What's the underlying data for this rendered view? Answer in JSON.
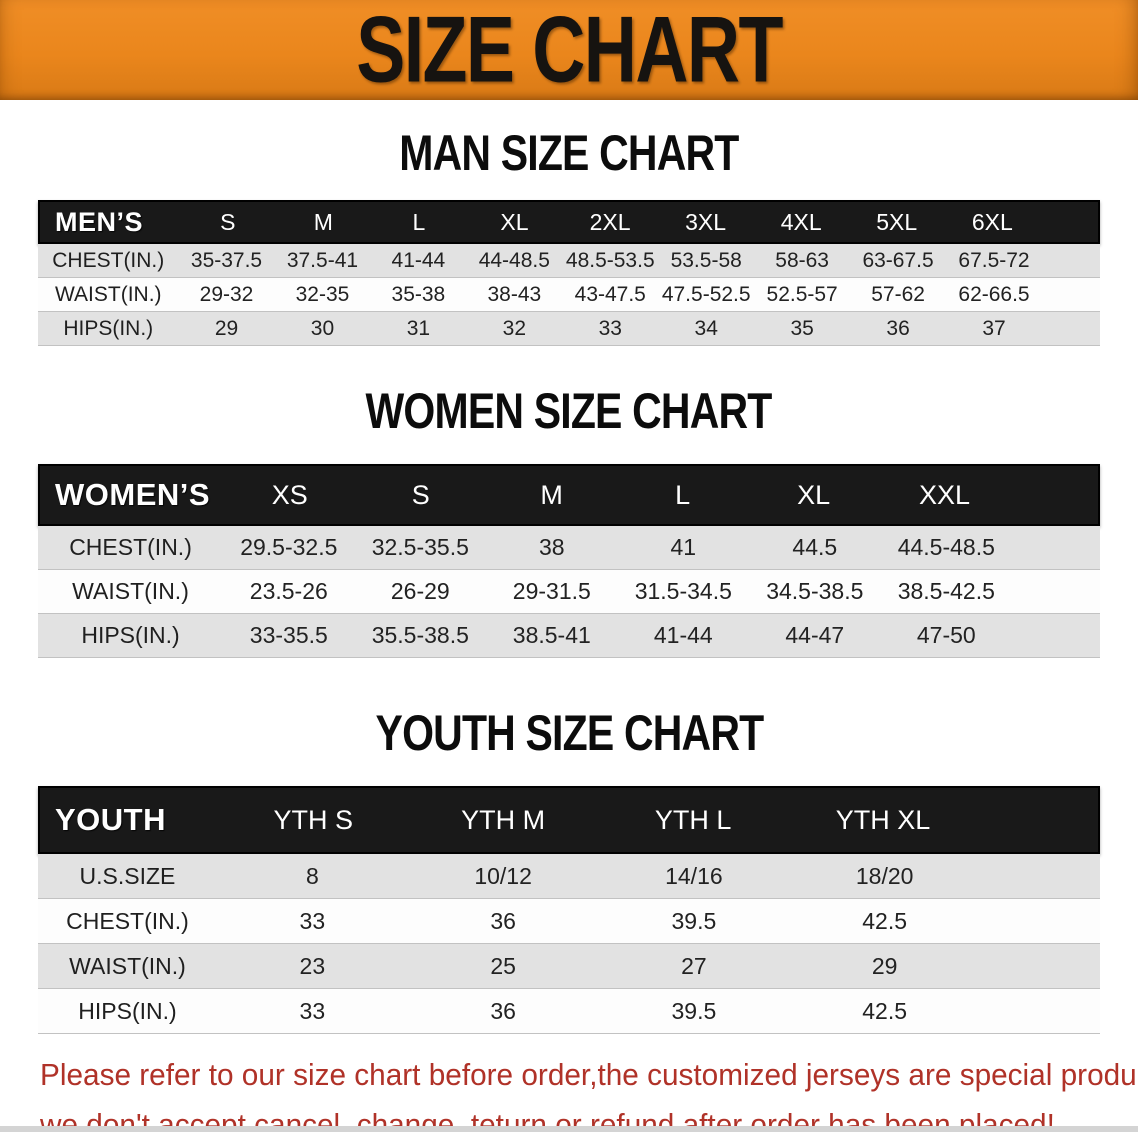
{
  "banner": {
    "title": "SIZE CHART",
    "bg_color": "#EA861C",
    "text_color": "#161310"
  },
  "sections": [
    {
      "heading": "MAN SIZE CHART",
      "table": {
        "label": "MEN’S",
        "sizes": [
          "S",
          "M",
          "L",
          "XL",
          "2XL",
          "3XL",
          "4XL",
          "5XL",
          "6XL"
        ],
        "rows": [
          {
            "label": "CHEST(IN.)",
            "values": [
              "35-37.5",
              "37.5-41",
              "41-44",
              "44-48.5",
              "48.5-53.5",
              "53.5-58",
              "58-63",
              "63-67.5",
              "67.5-72"
            ]
          },
          {
            "label": "WAIST(IN.)",
            "values": [
              "29-32",
              "32-35",
              "35-38",
              "38-43",
              "43-47.5",
              "47.5-52.5",
              "52.5-57",
              "57-62",
              "62-66.5"
            ]
          },
          {
            "label": "HIPS(IN.)",
            "values": [
              "29",
              "30",
              "31",
              "32",
              "33",
              "34",
              "35",
              "36",
              "37"
            ]
          }
        ]
      }
    },
    {
      "heading": "WOMEN SIZE CHART",
      "table": {
        "label": "WOMEN’S",
        "sizes": [
          "XS",
          "S",
          "M",
          "L",
          "XL",
          "XXL"
        ],
        "rows": [
          {
            "label": "CHEST(IN.)",
            "values": [
              "29.5-32.5",
              "32.5-35.5",
              "38",
              "41",
              "44.5",
              "44.5-48.5"
            ]
          },
          {
            "label": "WAIST(IN.)",
            "values": [
              "23.5-26",
              "26-29",
              "29-31.5",
              "31.5-34.5",
              "34.5-38.5",
              "38.5-42.5"
            ]
          },
          {
            "label": "HIPS(IN.)",
            "values": [
              "33-35.5",
              "35.5-38.5",
              "38.5-41",
              "41-44",
              "44-47",
              "47-50"
            ]
          }
        ]
      }
    },
    {
      "heading": "YOUTH SIZE CHART",
      "table": {
        "label": "YOUTH",
        "sizes": [
          "YTH S",
          "YTH M",
          "YTH L",
          "YTH XL"
        ],
        "rows": [
          {
            "label": "U.S.SIZE",
            "values": [
              "8",
              "10/12",
              "14/16",
              "18/20"
            ]
          },
          {
            "label": "CHEST(IN.)",
            "values": [
              "33",
              "36",
              "39.5",
              "42.5"
            ]
          },
          {
            "label": "WAIST(IN.)",
            "values": [
              "23",
              "25",
              "27",
              "29"
            ]
          },
          {
            "label": "HIPS(IN.)",
            "values": [
              "33",
              "36",
              "39.5",
              "42.5"
            ]
          }
        ]
      }
    }
  ],
  "disclaimer": {
    "line1": "Please refer to our size chart before order,the customized jerseys are special products,",
    "line2": "we don't accept cancel, change, teturn or refund after order has been placed!",
    "color": "#B03228"
  },
  "colors": {
    "banner_orange": "#EA861C",
    "table_header_black": "#191919",
    "row_alt_gray": "#E2E2E2",
    "disclaimer_red": "#B03228"
  }
}
